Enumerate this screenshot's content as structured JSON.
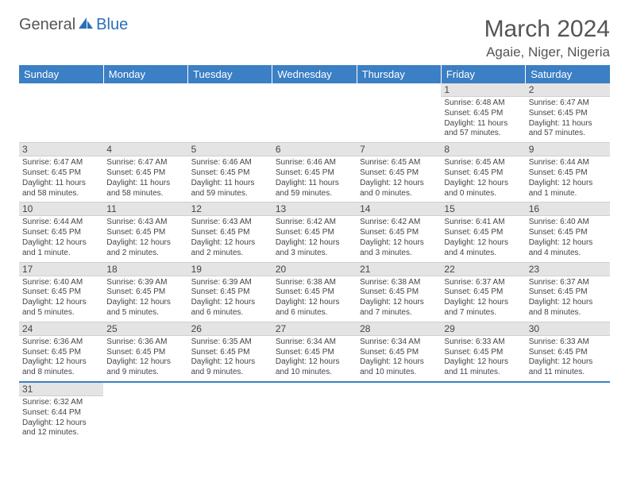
{
  "logo": {
    "prefix": "General",
    "suffix": "Blue"
  },
  "title": "March 2024",
  "location": "Agaie, Niger, Nigeria",
  "headers": [
    "Sunday",
    "Monday",
    "Tuesday",
    "Wednesday",
    "Thursday",
    "Friday",
    "Saturday"
  ],
  "colors": {
    "header_bg": "#3b7fc4",
    "header_text": "#ffffff",
    "daynum_bg": "#e4e4e4",
    "text": "#444444",
    "accent": "#2b6fb8"
  },
  "weeks": [
    [
      null,
      null,
      null,
      null,
      null,
      {
        "n": "1",
        "sr": "Sunrise: 6:48 AM",
        "ss": "Sunset: 6:45 PM",
        "d1": "Daylight: 11 hours",
        "d2": "and 57 minutes."
      },
      {
        "n": "2",
        "sr": "Sunrise: 6:47 AM",
        "ss": "Sunset: 6:45 PM",
        "d1": "Daylight: 11 hours",
        "d2": "and 57 minutes."
      }
    ],
    [
      {
        "n": "3",
        "sr": "Sunrise: 6:47 AM",
        "ss": "Sunset: 6:45 PM",
        "d1": "Daylight: 11 hours",
        "d2": "and 58 minutes."
      },
      {
        "n": "4",
        "sr": "Sunrise: 6:47 AM",
        "ss": "Sunset: 6:45 PM",
        "d1": "Daylight: 11 hours",
        "d2": "and 58 minutes."
      },
      {
        "n": "5",
        "sr": "Sunrise: 6:46 AM",
        "ss": "Sunset: 6:45 PM",
        "d1": "Daylight: 11 hours",
        "d2": "and 59 minutes."
      },
      {
        "n": "6",
        "sr": "Sunrise: 6:46 AM",
        "ss": "Sunset: 6:45 PM",
        "d1": "Daylight: 11 hours",
        "d2": "and 59 minutes."
      },
      {
        "n": "7",
        "sr": "Sunrise: 6:45 AM",
        "ss": "Sunset: 6:45 PM",
        "d1": "Daylight: 12 hours",
        "d2": "and 0 minutes."
      },
      {
        "n": "8",
        "sr": "Sunrise: 6:45 AM",
        "ss": "Sunset: 6:45 PM",
        "d1": "Daylight: 12 hours",
        "d2": "and 0 minutes."
      },
      {
        "n": "9",
        "sr": "Sunrise: 6:44 AM",
        "ss": "Sunset: 6:45 PM",
        "d1": "Daylight: 12 hours",
        "d2": "and 1 minute."
      }
    ],
    [
      {
        "n": "10",
        "sr": "Sunrise: 6:44 AM",
        "ss": "Sunset: 6:45 PM",
        "d1": "Daylight: 12 hours",
        "d2": "and 1 minute."
      },
      {
        "n": "11",
        "sr": "Sunrise: 6:43 AM",
        "ss": "Sunset: 6:45 PM",
        "d1": "Daylight: 12 hours",
        "d2": "and 2 minutes."
      },
      {
        "n": "12",
        "sr": "Sunrise: 6:43 AM",
        "ss": "Sunset: 6:45 PM",
        "d1": "Daylight: 12 hours",
        "d2": "and 2 minutes."
      },
      {
        "n": "13",
        "sr": "Sunrise: 6:42 AM",
        "ss": "Sunset: 6:45 PM",
        "d1": "Daylight: 12 hours",
        "d2": "and 3 minutes."
      },
      {
        "n": "14",
        "sr": "Sunrise: 6:42 AM",
        "ss": "Sunset: 6:45 PM",
        "d1": "Daylight: 12 hours",
        "d2": "and 3 minutes."
      },
      {
        "n": "15",
        "sr": "Sunrise: 6:41 AM",
        "ss": "Sunset: 6:45 PM",
        "d1": "Daylight: 12 hours",
        "d2": "and 4 minutes."
      },
      {
        "n": "16",
        "sr": "Sunrise: 6:40 AM",
        "ss": "Sunset: 6:45 PM",
        "d1": "Daylight: 12 hours",
        "d2": "and 4 minutes."
      }
    ],
    [
      {
        "n": "17",
        "sr": "Sunrise: 6:40 AM",
        "ss": "Sunset: 6:45 PM",
        "d1": "Daylight: 12 hours",
        "d2": "and 5 minutes."
      },
      {
        "n": "18",
        "sr": "Sunrise: 6:39 AM",
        "ss": "Sunset: 6:45 PM",
        "d1": "Daylight: 12 hours",
        "d2": "and 5 minutes."
      },
      {
        "n": "19",
        "sr": "Sunrise: 6:39 AM",
        "ss": "Sunset: 6:45 PM",
        "d1": "Daylight: 12 hours",
        "d2": "and 6 minutes."
      },
      {
        "n": "20",
        "sr": "Sunrise: 6:38 AM",
        "ss": "Sunset: 6:45 PM",
        "d1": "Daylight: 12 hours",
        "d2": "and 6 minutes."
      },
      {
        "n": "21",
        "sr": "Sunrise: 6:38 AM",
        "ss": "Sunset: 6:45 PM",
        "d1": "Daylight: 12 hours",
        "d2": "and 7 minutes."
      },
      {
        "n": "22",
        "sr": "Sunrise: 6:37 AM",
        "ss": "Sunset: 6:45 PM",
        "d1": "Daylight: 12 hours",
        "d2": "and 7 minutes."
      },
      {
        "n": "23",
        "sr": "Sunrise: 6:37 AM",
        "ss": "Sunset: 6:45 PM",
        "d1": "Daylight: 12 hours",
        "d2": "and 8 minutes."
      }
    ],
    [
      {
        "n": "24",
        "sr": "Sunrise: 6:36 AM",
        "ss": "Sunset: 6:45 PM",
        "d1": "Daylight: 12 hours",
        "d2": "and 8 minutes."
      },
      {
        "n": "25",
        "sr": "Sunrise: 6:36 AM",
        "ss": "Sunset: 6:45 PM",
        "d1": "Daylight: 12 hours",
        "d2": "and 9 minutes."
      },
      {
        "n": "26",
        "sr": "Sunrise: 6:35 AM",
        "ss": "Sunset: 6:45 PM",
        "d1": "Daylight: 12 hours",
        "d2": "and 9 minutes."
      },
      {
        "n": "27",
        "sr": "Sunrise: 6:34 AM",
        "ss": "Sunset: 6:45 PM",
        "d1": "Daylight: 12 hours",
        "d2": "and 10 minutes."
      },
      {
        "n": "28",
        "sr": "Sunrise: 6:34 AM",
        "ss": "Sunset: 6:45 PM",
        "d1": "Daylight: 12 hours",
        "d2": "and 10 minutes."
      },
      {
        "n": "29",
        "sr": "Sunrise: 6:33 AM",
        "ss": "Sunset: 6:45 PM",
        "d1": "Daylight: 12 hours",
        "d2": "and 11 minutes."
      },
      {
        "n": "30",
        "sr": "Sunrise: 6:33 AM",
        "ss": "Sunset: 6:45 PM",
        "d1": "Daylight: 12 hours",
        "d2": "and 11 minutes."
      }
    ],
    [
      {
        "n": "31",
        "sr": "Sunrise: 6:32 AM",
        "ss": "Sunset: 6:44 PM",
        "d1": "Daylight: 12 hours",
        "d2": "and 12 minutes."
      },
      null,
      null,
      null,
      null,
      null,
      null
    ]
  ]
}
